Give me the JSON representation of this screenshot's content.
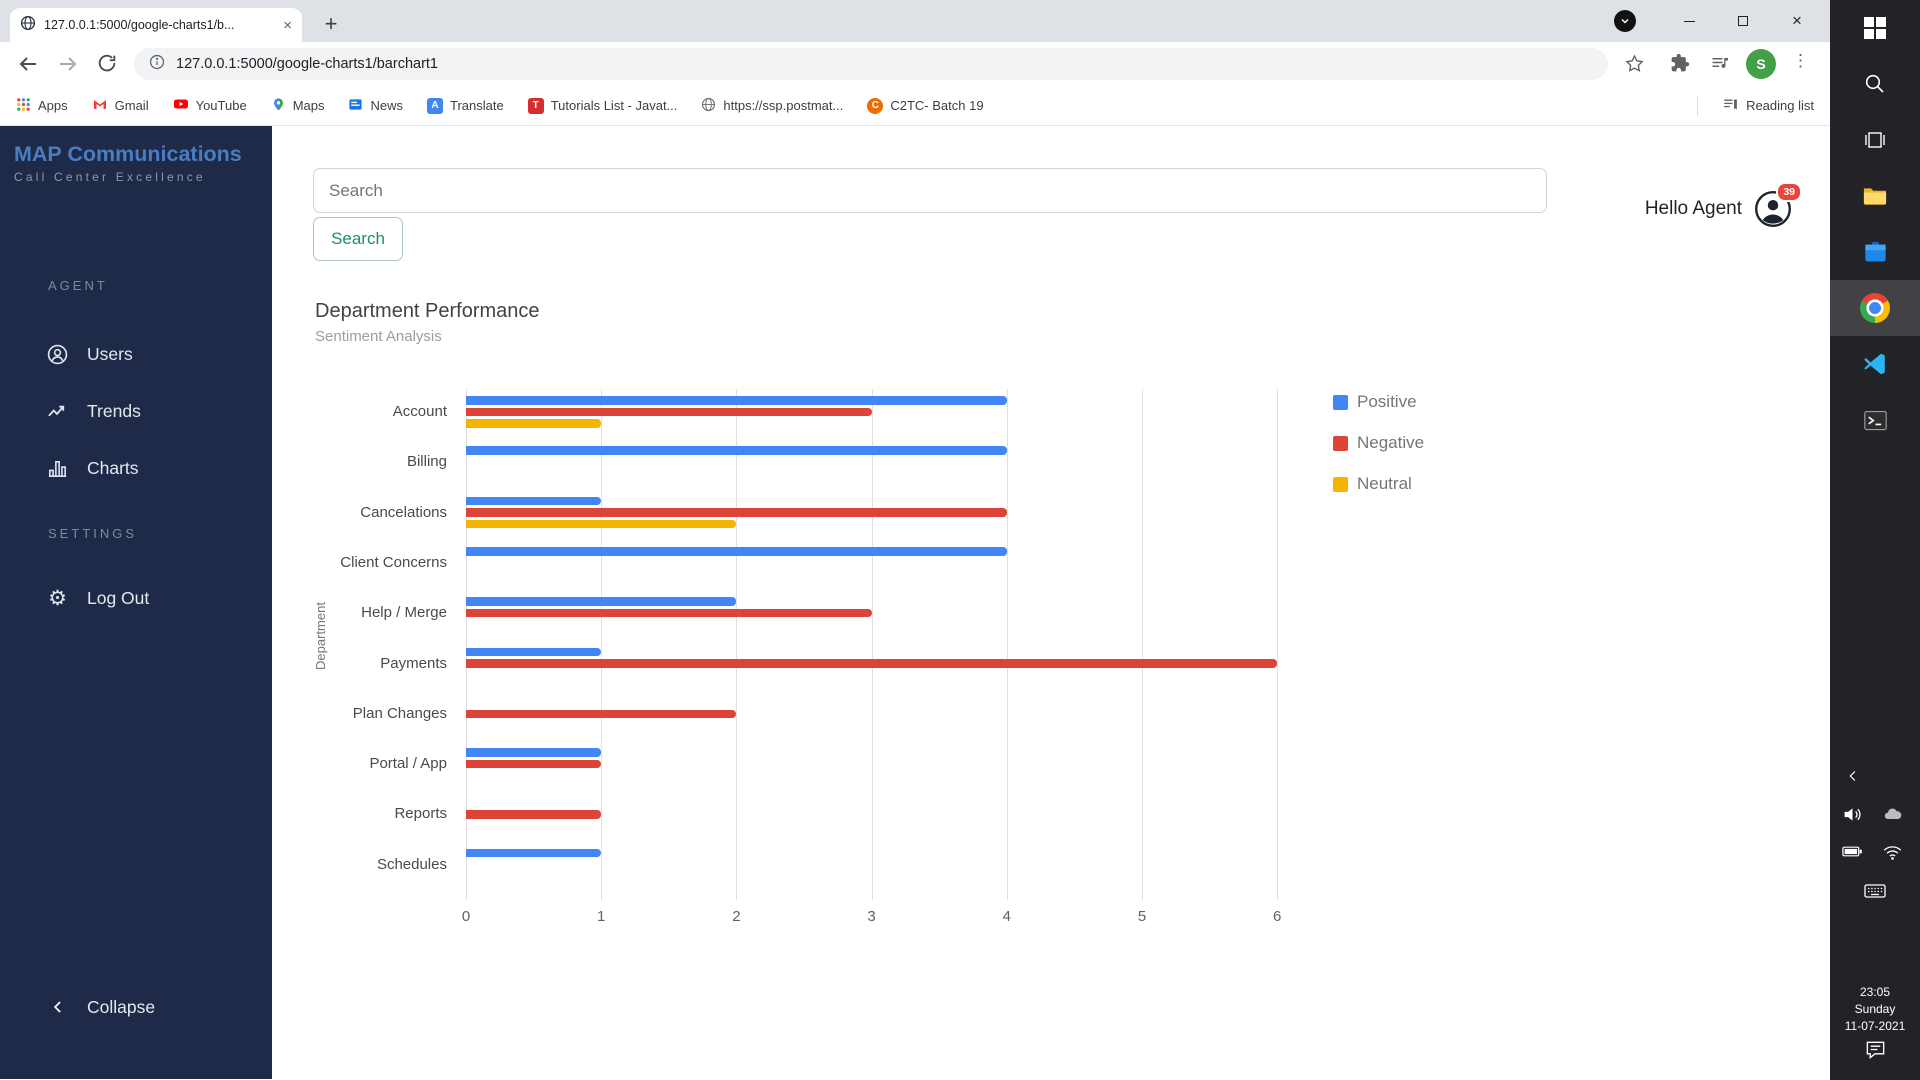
{
  "browser": {
    "tab_title": "127.0.0.1:5000/google-charts1/b...",
    "url": "127.0.0.1:5000/google-charts1/barchart1",
    "profile_initial": "S",
    "reading_list_label": "Reading list",
    "bookmarks": [
      {
        "label": "Apps"
      },
      {
        "label": "Gmail"
      },
      {
        "label": "YouTube"
      },
      {
        "label": "Maps"
      },
      {
        "label": "News"
      },
      {
        "label": "Translate"
      },
      {
        "label": "Tutorials List - Javat..."
      },
      {
        "label": "https://ssp.postmat..."
      },
      {
        "label": "C2TC- Batch 19"
      }
    ]
  },
  "sidebar": {
    "logo_title": "MAP Communications",
    "logo_subtitle": "Call Center Excellence",
    "agent_section_label": "AGENT",
    "items": [
      {
        "label": "Users"
      },
      {
        "label": "Trends"
      },
      {
        "label": "Charts"
      }
    ],
    "settings_section_label": "SETTINGS",
    "logout_label": "Log Out",
    "collapse_label": "Collapse"
  },
  "topbar": {
    "search_placeholder": "Search",
    "search_button_label": "Search",
    "greeting": "Hello Agent",
    "notification_count": "39"
  },
  "chart_data": {
    "type": "bar",
    "orientation": "horizontal",
    "title": "Department Performance",
    "subtitle": "Sentiment Analysis",
    "category_axis_label": "Department",
    "categories": [
      "Account",
      "Billing",
      "Cancelations",
      "Client Concerns",
      "Help / Merge",
      "Payments",
      "Plan Changes",
      "Portal / App",
      "Reports",
      "Schedules"
    ],
    "series": [
      {
        "name": "Positive",
        "color": "#4285F4",
        "values": [
          4,
          4,
          1,
          4,
          2,
          1,
          0,
          1,
          0,
          1
        ]
      },
      {
        "name": "Negative",
        "color": "#DB4437",
        "values": [
          3,
          0,
          4,
          0,
          3,
          6,
          2,
          1,
          1,
          0
        ]
      },
      {
        "name": "Neutral",
        "color": "#F4B400",
        "values": [
          1,
          0,
          2,
          0,
          0,
          0,
          0,
          0,
          0,
          0
        ]
      }
    ],
    "xlim": [
      0,
      6
    ],
    "xticks": [
      0,
      1,
      2,
      3,
      4,
      5,
      6
    ],
    "grid": true,
    "legend_position": "right"
  },
  "taskbar": {
    "clock_time": "23:05",
    "clock_day": "Sunday",
    "clock_date": "11-07-2021"
  }
}
